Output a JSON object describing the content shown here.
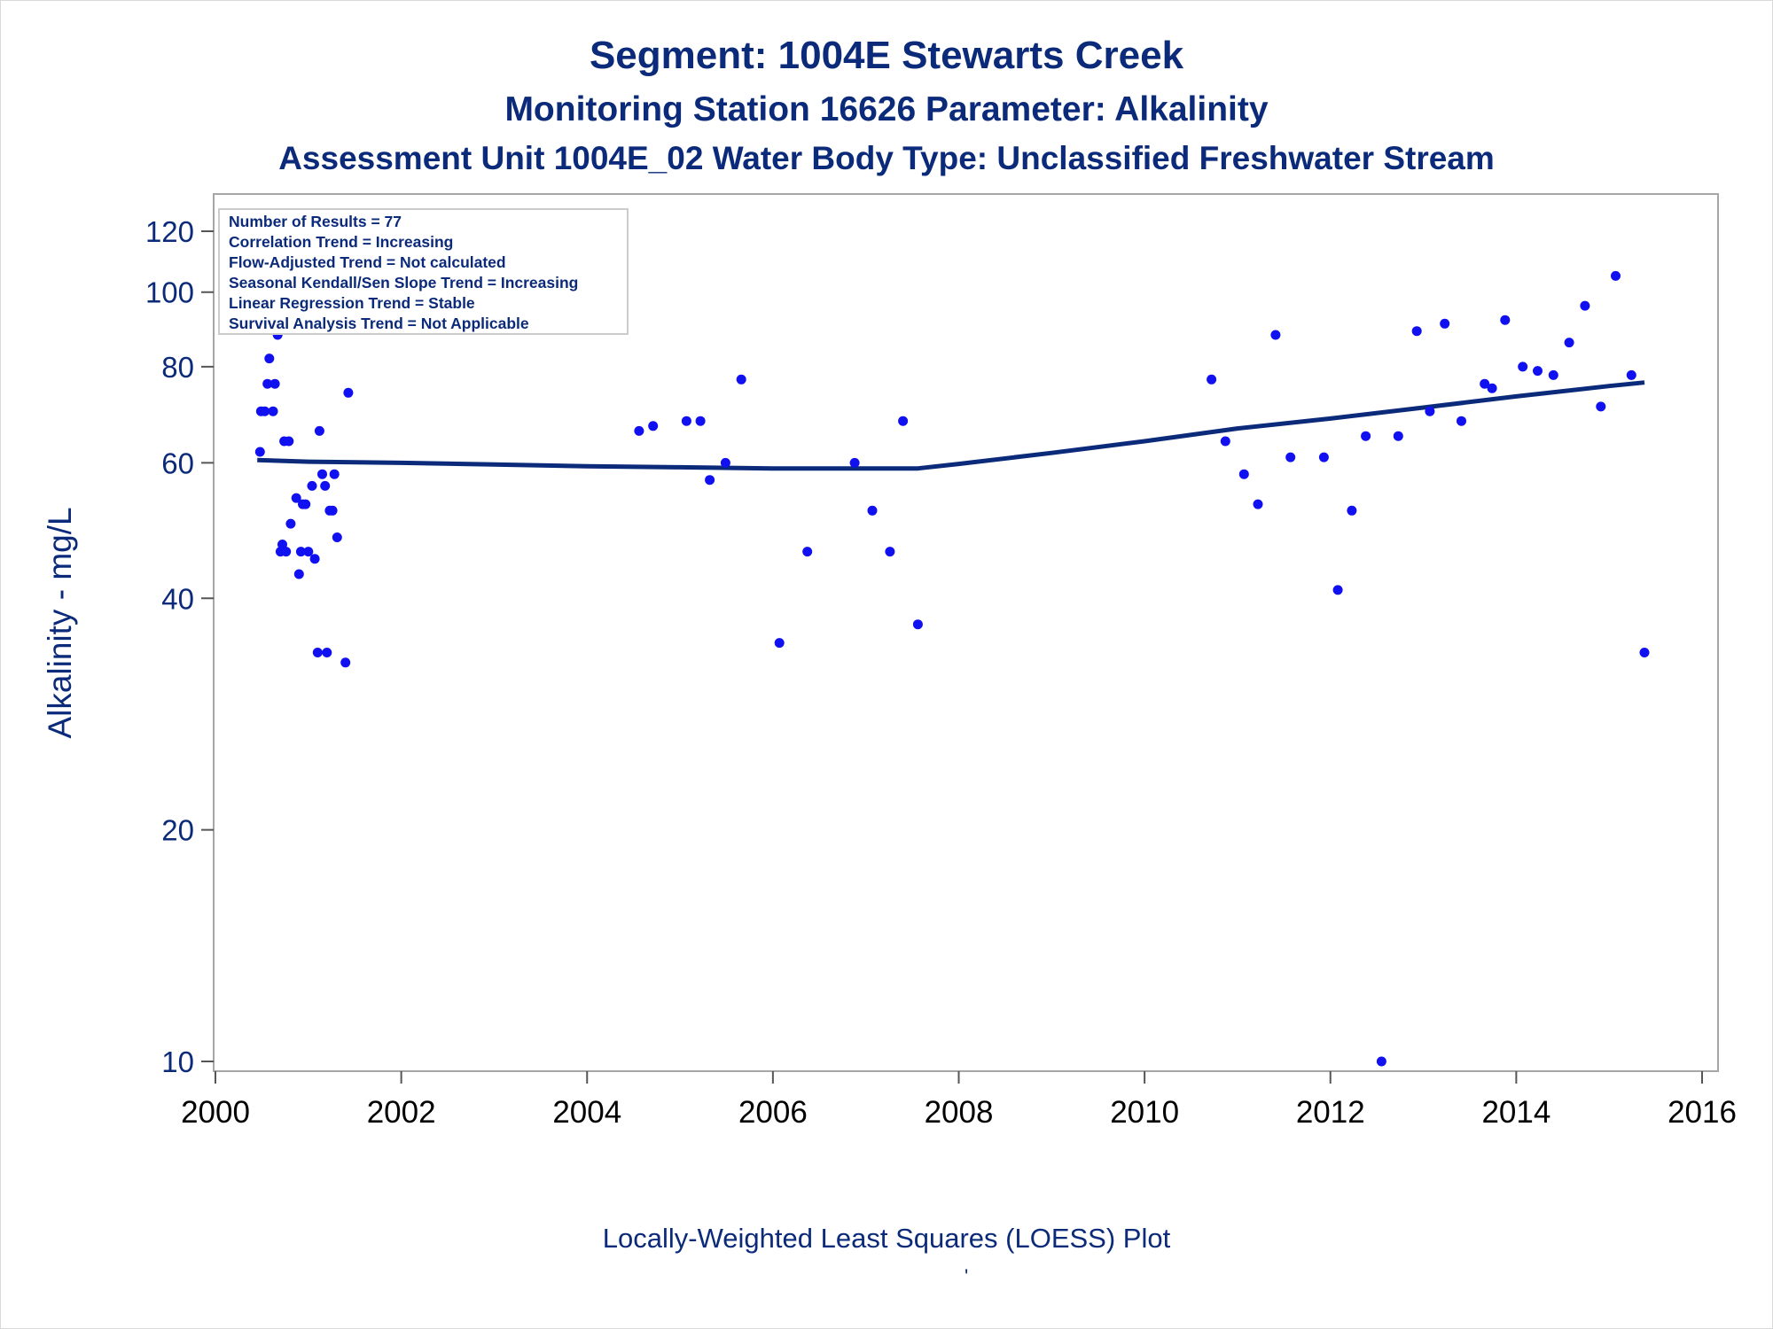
{
  "header": {
    "title": "Segment: 1004E  Stewarts Creek",
    "subtitle1": "Monitoring Station 16626 Parameter: Alkalinity",
    "subtitle2": "Assessment Unit 1004E_02   Water Body Type: Unclassified Freshwater Stream"
  },
  "footer": {
    "caption": "Locally-Weighted Least Squares (LOESS) Plot",
    "mark": "'"
  },
  "info_box": {
    "lines": [
      "Number of Results = 77",
      "Correlation Trend = Increasing",
      "Flow-Adjusted Trend = Not calculated",
      "Seasonal Kendall/Sen Slope Trend = Increasing",
      "Linear Regression Trend = Stable",
      "Survival Analysis Trend = Not Applicable"
    ]
  },
  "colors": {
    "text": "#0b2a7a",
    "points": "#1010f0",
    "loess_line": "#0b2a7a",
    "frame": "#a6a6a6"
  },
  "chart_data": {
    "type": "scatter",
    "title": "Segment: 1004E  Stewarts Creek",
    "xlabel": "",
    "ylabel": "Alkalinity - mg/L",
    "y_scale": "log",
    "xlim": [
      2000,
      2016
    ],
    "ylim": [
      10,
      120
    ],
    "x_ticks": [
      2000,
      2002,
      2004,
      2006,
      2008,
      2010,
      2012,
      2014,
      2016
    ],
    "y_ticks": [
      10,
      20,
      40,
      60,
      80,
      100,
      120
    ],
    "grid": false,
    "series": [
      {
        "type": "scatter",
        "points": [
          [
            2000.45,
            126
          ],
          [
            2000.48,
            62
          ],
          [
            2000.49,
            70
          ],
          [
            2000.53,
            70
          ],
          [
            2000.56,
            76
          ],
          [
            2000.58,
            82
          ],
          [
            2000.62,
            70
          ],
          [
            2000.64,
            76
          ],
          [
            2000.67,
            88
          ],
          [
            2000.7,
            46
          ],
          [
            2000.72,
            47
          ],
          [
            2000.74,
            64
          ],
          [
            2000.76,
            46
          ],
          [
            2000.79,
            64
          ],
          [
            2000.81,
            50
          ],
          [
            2000.87,
            54
          ],
          [
            2000.9,
            43
          ],
          [
            2000.92,
            46
          ],
          [
            2000.94,
            53
          ],
          [
            2000.97,
            53
          ],
          [
            2001.0,
            46
          ],
          [
            2001.04,
            56
          ],
          [
            2001.07,
            45
          ],
          [
            2001.1,
            34
          ],
          [
            2001.12,
            66
          ],
          [
            2001.15,
            58
          ],
          [
            2001.18,
            56
          ],
          [
            2001.2,
            34
          ],
          [
            2001.23,
            52
          ],
          [
            2001.26,
            52
          ],
          [
            2001.28,
            58
          ],
          [
            2001.31,
            48
          ],
          [
            2001.34,
            100
          ],
          [
            2001.4,
            33
          ],
          [
            2001.43,
            74
          ],
          [
            2004.56,
            66
          ],
          [
            2004.71,
            67
          ],
          [
            2005.07,
            68
          ],
          [
            2005.22,
            68
          ],
          [
            2005.32,
            57
          ],
          [
            2005.49,
            60
          ],
          [
            2005.66,
            77
          ],
          [
            2006.07,
            35
          ],
          [
            2006.37,
            46
          ],
          [
            2006.88,
            60
          ],
          [
            2007.07,
            52
          ],
          [
            2007.26,
            46
          ],
          [
            2007.4,
            68
          ],
          [
            2007.56,
            37
          ],
          [
            2010.72,
            77
          ],
          [
            2010.87,
            64
          ],
          [
            2011.07,
            58
          ],
          [
            2011.22,
            53
          ],
          [
            2011.41,
            88
          ],
          [
            2011.57,
            61
          ],
          [
            2011.93,
            61
          ],
          [
            2012.08,
            41
          ],
          [
            2012.23,
            52
          ],
          [
            2012.38,
            65
          ],
          [
            2012.55,
            10
          ],
          [
            2012.73,
            65
          ],
          [
            2012.93,
            89
          ],
          [
            2013.07,
            70
          ],
          [
            2013.23,
            91
          ],
          [
            2013.41,
            68
          ],
          [
            2013.66,
            76
          ],
          [
            2013.74,
            75
          ],
          [
            2013.88,
            92
          ],
          [
            2014.07,
            80
          ],
          [
            2014.23,
            79
          ],
          [
            2014.4,
            78
          ],
          [
            2014.57,
            86
          ],
          [
            2014.74,
            96
          ],
          [
            2014.91,
            71
          ],
          [
            2015.07,
            105
          ],
          [
            2015.24,
            78
          ],
          [
            2015.38,
            34
          ]
        ]
      },
      {
        "type": "line",
        "points": [
          [
            2000.45,
            60.5
          ],
          [
            2001.0,
            60.2
          ],
          [
            2002.0,
            60.0
          ],
          [
            2003.0,
            59.7
          ],
          [
            2004.0,
            59.4
          ],
          [
            2005.0,
            59.2
          ],
          [
            2006.0,
            59.0
          ],
          [
            2007.0,
            59.0
          ],
          [
            2007.56,
            59.0
          ],
          [
            2008.0,
            59.8
          ],
          [
            2009.0,
            61.8
          ],
          [
            2010.0,
            64.0
          ],
          [
            2011.0,
            66.5
          ],
          [
            2012.0,
            68.5
          ],
          [
            2013.0,
            70.8
          ],
          [
            2014.0,
            73.2
          ],
          [
            2015.0,
            75.5
          ],
          [
            2015.38,
            76.3
          ]
        ]
      }
    ]
  }
}
